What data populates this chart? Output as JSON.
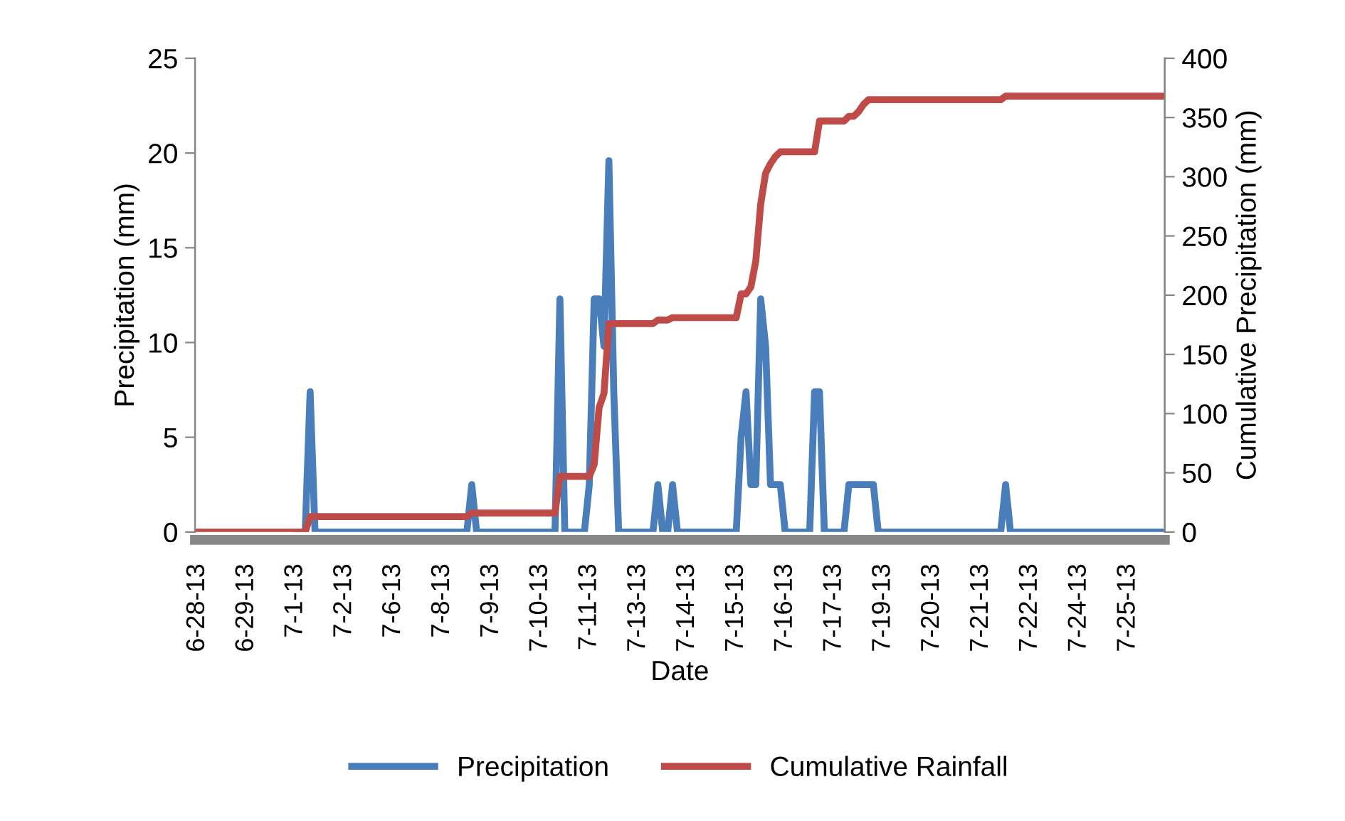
{
  "chart_data": {
    "type": "line",
    "xlabel": "Date",
    "ylabel": "Precipitation (mm)",
    "y2label": "Cumulative Precipitation (mm)",
    "categories": [
      "6-28-13",
      null,
      null,
      null,
      null,
      null,
      null,
      null,
      null,
      null,
      "6-29-13",
      null,
      null,
      null,
      null,
      null,
      null,
      null,
      null,
      null,
      "7-1-13",
      null,
      null,
      null,
      null,
      null,
      null,
      null,
      null,
      null,
      "7-2-13",
      null,
      null,
      null,
      null,
      null,
      null,
      null,
      null,
      null,
      "7-6-13",
      null,
      null,
      null,
      null,
      null,
      null,
      null,
      null,
      null,
      "7-8-13",
      null,
      null,
      null,
      null,
      null,
      null,
      null,
      null,
      null,
      "7-9-13",
      null,
      null,
      null,
      null,
      null,
      null,
      null,
      null,
      null,
      "7-10-13",
      null,
      null,
      null,
      null,
      null,
      null,
      null,
      null,
      null,
      "7-11-13",
      null,
      null,
      null,
      null,
      null,
      null,
      null,
      null,
      null,
      "7-13-13",
      null,
      null,
      null,
      null,
      null,
      null,
      null,
      null,
      null,
      "7-14-13",
      null,
      null,
      null,
      null,
      null,
      null,
      null,
      null,
      null,
      "7-15-13",
      null,
      null,
      null,
      null,
      null,
      null,
      null,
      null,
      null,
      "7-16-13",
      null,
      null,
      null,
      null,
      null,
      null,
      null,
      null,
      null,
      "7-17-13",
      null,
      null,
      null,
      null,
      null,
      null,
      null,
      null,
      null,
      "7-19-13",
      null,
      null,
      null,
      null,
      null,
      null,
      null,
      null,
      null,
      "7-20-13",
      null,
      null,
      null,
      null,
      null,
      null,
      null,
      null,
      null,
      "7-21-13",
      null,
      null,
      null,
      null,
      null,
      null,
      null,
      null,
      null,
      "7-22-13",
      null,
      null,
      null,
      null,
      null,
      null,
      null,
      null,
      null,
      "7-24-13",
      null,
      null,
      null,
      null,
      null,
      null,
      null,
      null,
      null,
      "7-25-13",
      null,
      null,
      null,
      null,
      null,
      null,
      null
    ],
    "series": [
      {
        "name": "Precipitation",
        "color": "#4a7ebb",
        "values": [
          null,
          null,
          null,
          null,
          null,
          null,
          null,
          null,
          null,
          null,
          null,
          null,
          null,
          null,
          null,
          null,
          null,
          null,
          null,
          null,
          0,
          0,
          0,
          7.4,
          0,
          0,
          0,
          0,
          0,
          0,
          0,
          0,
          0,
          0,
          0,
          0,
          0,
          0,
          0,
          0,
          0,
          0,
          0,
          0,
          0,
          0,
          0,
          0,
          0,
          0,
          0,
          0,
          0,
          0,
          0,
          0,
          2.5,
          0,
          0,
          0,
          0,
          0,
          0,
          0,
          0,
          0,
          0,
          0,
          0,
          0,
          0,
          0,
          0,
          0,
          12.3,
          0,
          0,
          0,
          0,
          0,
          2.5,
          12.3,
          12.3,
          9.8,
          19.6,
          7.4,
          0,
          0,
          0,
          0,
          0,
          0,
          0,
          0,
          2.5,
          0,
          0,
          2.5,
          0,
          0,
          0,
          0,
          0,
          0,
          0,
          0,
          0,
          0,
          0,
          0,
          0,
          5.0,
          7.4,
          2.5,
          2.5,
          12.3,
          9.8,
          2.5,
          2.5,
          2.5,
          0,
          0,
          0,
          0,
          0,
          0,
          7.4,
          7.4,
          0,
          0,
          0,
          0,
          0,
          2.5,
          2.5,
          2.5,
          2.5,
          2.5,
          2.5,
          0,
          0,
          0,
          0,
          0,
          0,
          0,
          0,
          0,
          0,
          0,
          0,
          0,
          0,
          0,
          0,
          0,
          0,
          0,
          0,
          0,
          0,
          0,
          0,
          0,
          0,
          2.5,
          0,
          0,
          0,
          0,
          0,
          0,
          0,
          0,
          0,
          0,
          0,
          0,
          0,
          0,
          0,
          0,
          0,
          0,
          0,
          0,
          0,
          0,
          0,
          0,
          0,
          0,
          0,
          0,
          0,
          0,
          0,
          0
        ]
      },
      {
        "name": "Cumulative Rainfall",
        "color": "#be4b48",
        "axis": "y2",
        "values": [
          0,
          0,
          0,
          0,
          0,
          0,
          0,
          0,
          0,
          0,
          0,
          0,
          0,
          0,
          0,
          0,
          0,
          0,
          0,
          0,
          0,
          0,
          0,
          13,
          13,
          13,
          13,
          13,
          13,
          13,
          13,
          13,
          13,
          13,
          13,
          13,
          13,
          13,
          13,
          13,
          13,
          13,
          13,
          13,
          13,
          13,
          13,
          13,
          13,
          13,
          13,
          13,
          13,
          13,
          13,
          13,
          16,
          16,
          16,
          16,
          16,
          16,
          16,
          16,
          16,
          16,
          16,
          16,
          16,
          16,
          16,
          16,
          16,
          16,
          47,
          47,
          47,
          47,
          47,
          47,
          47,
          57,
          105,
          117,
          176,
          176,
          176,
          176,
          176,
          176,
          176,
          176,
          176,
          176,
          179,
          179,
          179,
          181,
          181,
          181,
          181,
          181,
          181,
          181,
          181,
          181,
          181,
          181,
          181,
          181,
          181,
          201,
          201,
          207,
          229,
          277,
          303,
          311,
          317,
          321,
          321,
          321,
          321,
          321,
          321,
          321,
          321,
          347,
          347,
          347,
          347,
          347,
          347,
          351,
          351,
          355,
          361,
          365,
          365,
          365,
          365,
          365,
          365,
          365,
          365,
          365,
          365,
          365,
          365,
          365,
          365,
          365,
          365,
          365,
          365,
          365,
          365,
          365,
          365,
          365,
          365,
          365,
          365,
          365,
          365,
          368,
          368,
          368,
          368,
          368,
          368,
          368,
          368,
          368,
          368,
          368,
          368,
          368,
          368,
          368,
          368,
          368,
          368,
          368,
          368,
          368,
          368,
          368,
          368,
          368,
          368,
          368,
          368,
          368,
          368,
          368,
          368,
          368
        ]
      }
    ],
    "ylim": [
      0,
      25
    ],
    "yticks": [
      0,
      5,
      10,
      15,
      20,
      25
    ],
    "y2lim": [
      0,
      400
    ],
    "y2ticks": [
      0,
      50,
      100,
      150,
      200,
      250,
      300,
      350,
      400
    ],
    "grid": false,
    "legend": "bottom",
    "marker": "none",
    "line_style": "solid"
  }
}
